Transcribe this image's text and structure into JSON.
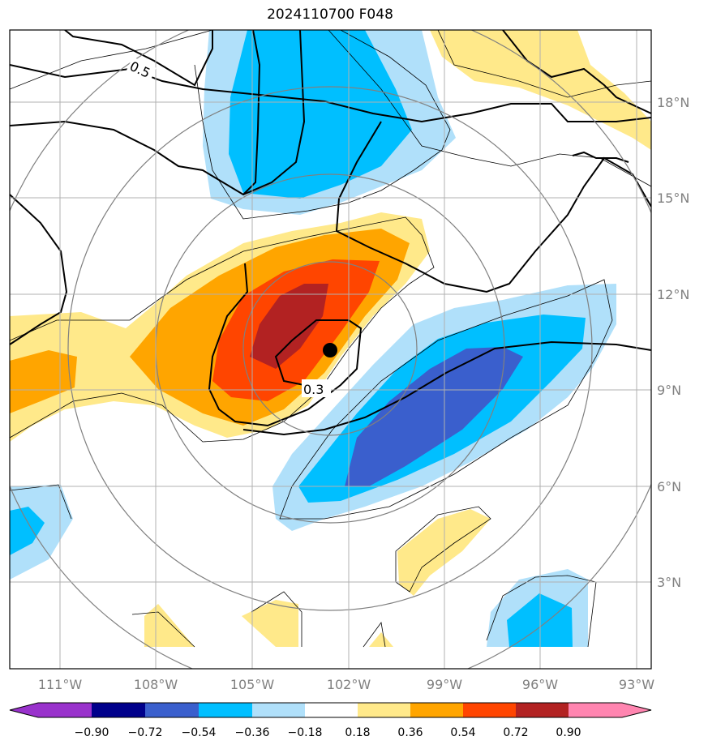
{
  "title": "2024110700 F048",
  "map": {
    "lon_ticks": [
      "111°W",
      "108°W",
      "105°W",
      "102°W",
      "99°W",
      "96°W",
      "93°W"
    ],
    "lat_ticks": [
      "18°N",
      "15°N",
      "12°N",
      "9°N",
      "6°N",
      "3°N"
    ],
    "contour_labels": [
      "0.5",
      "0.3"
    ],
    "storm_center": {
      "lon": -102.6,
      "lat": 10.3
    },
    "extent": {
      "lon": [
        -112.5,
        -92.5
      ],
      "lat": [
        0.7,
        20.3
      ]
    }
  },
  "colorbar": {
    "ticks": [
      "−0.90",
      "−0.72",
      "−0.54",
      "−0.36",
      "−0.18",
      "0.18",
      "0.36",
      "0.54",
      "0.72",
      "0.90"
    ],
    "colors": [
      "#9932cc",
      "#00008b",
      "#3a5fcd",
      "#00bfff",
      "#b0e0fa",
      "#ffffff",
      "#ffe98a",
      "#ffa500",
      "#ff4500",
      "#b22222",
      "#ff85b0"
    ]
  }
}
